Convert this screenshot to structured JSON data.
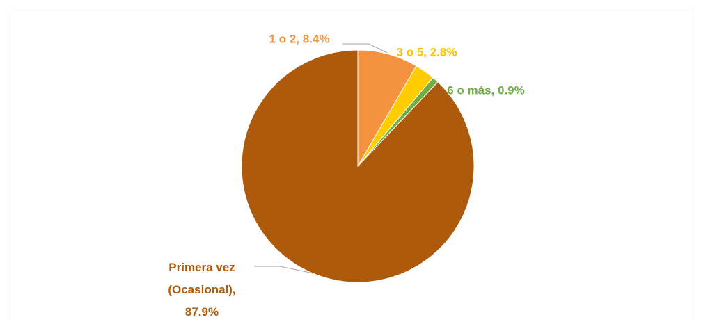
{
  "chart_data": {
    "type": "pie",
    "values": [
      8.4,
      2.8,
      0.9,
      87.9
    ],
    "value_labels": [
      "1 o 2, 8.4%",
      "3 o 5, 2.8%",
      "6 o más, 0.9%",
      "Primera vez (Ocasional), 87.9%"
    ],
    "colors": [
      "#f4923f",
      "#ffcc00",
      "#70ad47",
      "#ae5a0d"
    ],
    "label_colors": [
      "#f4923f",
      "#ffc000",
      "#70ad47",
      "#ae5a0d"
    ]
  }
}
